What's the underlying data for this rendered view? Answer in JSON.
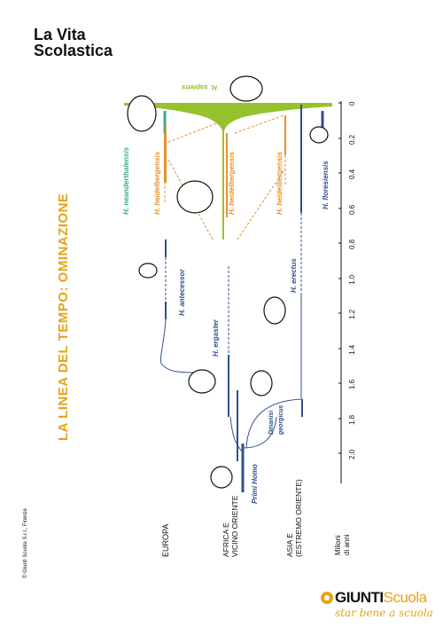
{
  "header": {
    "logo_line1": "La Vita",
    "logo_line2": "Scolastica"
  },
  "copyright": "© Giunti Scuola S.r.l., Firenze",
  "title": "LA LINEA DEL TEMPO: OMINAZIONE",
  "regions": [
    "EUROPA",
    "AFRICA E",
    "VICINO ORIENTE",
    "ASIA E",
    "(ESTREMO ORIENTE)"
  ],
  "axis": {
    "label_line1": "Milioni",
    "label_line2": "di anni",
    "ticks": [
      "0",
      "0.2",
      "0.4",
      "0.6",
      "0.8",
      "1.0",
      "1.2",
      "1.4",
      "1.6",
      "1.8",
      "2.0"
    ]
  },
  "species": {
    "sapiens": "H. sapiens",
    "neanderthalensis": "H. neanderthalensis",
    "heidelbergensis_eu": "H. heidelbergensis",
    "heidelbergensis_af": "H. heidelbergensis",
    "heidelbergensis_as": "H. heidelbergensis",
    "floresiensis": "H. floresiensis",
    "antecessor": "H. antecessor",
    "ergaster": "H. ergaster",
    "erectus": "H. erectus",
    "dmanisi": "Dmanisi",
    "georgicus": "georgicus",
    "primi_homo": "Primi Homo"
  },
  "footer": {
    "brand_a": "GIUNTI",
    "brand_b": "Scuola",
    "tagline": "star bene a scuola"
  },
  "colors": {
    "title": "#e8a317",
    "sapiens": "#96c22e",
    "neanderthal": "#3aaa8e",
    "heidelberg": "#e8902c",
    "erectus": "#2f4f8f",
    "text": "#111111"
  }
}
